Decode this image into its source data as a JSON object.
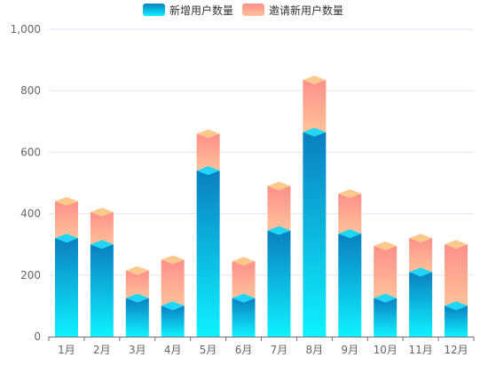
{
  "chart_data": {
    "type": "bar",
    "stacked": true,
    "categories": [
      "1月",
      "2月",
      "3月",
      "4月",
      "5月",
      "6月",
      "7月",
      "8月",
      "9月",
      "10月",
      "11月",
      "12月"
    ],
    "series": [
      {
        "name": "新增用户数量",
        "values": [
          320,
          300,
          125,
          100,
          540,
          125,
          345,
          665,
          335,
          125,
          210,
          100
        ],
        "gradient": [
          "#0a7fc0",
          "#0ef2ff"
        ],
        "cap_color": "#1fd7f5"
      },
      {
        "name": "邀请新用户数量",
        "values": [
          120,
          105,
          90,
          150,
          120,
          120,
          145,
          170,
          130,
          170,
          110,
          200
        ],
        "gradient": [
          "#ff8f8a",
          "#ffc29a"
        ],
        "cap_color": "#fcc88c"
      }
    ],
    "y_ticks": [
      "0",
      "200",
      "400",
      "600",
      "800",
      "1,000"
    ],
    "ylim": [
      0,
      1000
    ],
    "grid": true,
    "legend": "top-center",
    "axis_color": "#6e7079",
    "grid_color": "#e0e6f1"
  }
}
